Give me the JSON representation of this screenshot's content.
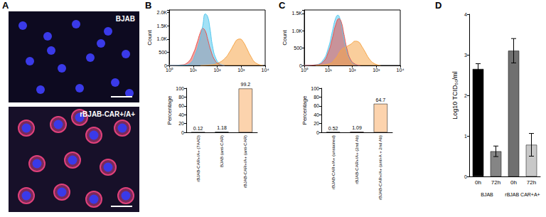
{
  "figure": {
    "panels": [
      {
        "label": "A",
        "images": [
          {
            "label": "BJAB"
          },
          {
            "label": "rBJAB-CAR+/A+"
          }
        ]
      },
      {
        "label": "B"
      },
      {
        "label": "C"
      },
      {
        "label": "D"
      }
    ]
  },
  "chart_data": [
    {
      "type": "area",
      "log": "x",
      "xlim": [
        1,
        10000
      ],
      "xticks": [
        {
          "value": 1,
          "label": "10⁰"
        },
        {
          "value": 10,
          "label": "10¹"
        },
        {
          "value": 100,
          "label": "10²"
        },
        {
          "value": 1000,
          "label": "10³"
        },
        {
          "value": 10000,
          "label": "10⁴"
        }
      ],
      "ylim": [
        0,
        2100
      ],
      "yticks": [
        0,
        500,
        {
          "value": 1000,
          "label": "1.0K"
        },
        {
          "value": 1500,
          "label": "1.5K"
        },
        {
          "value": 2000,
          "label": "2.0K"
        }
      ],
      "ylabel": "Count",
      "series": [
        {
          "color": "#e8534f",
          "x": [
            1,
            3,
            6,
            10,
            15,
            20,
            25,
            32,
            40,
            55,
            80,
            120,
            200
          ],
          "values": [
            0,
            20,
            120,
            450,
            900,
            1250,
            1400,
            1300,
            1000,
            550,
            200,
            50,
            0
          ]
        },
        {
          "color": "#56c8ee",
          "x": [
            1,
            4,
            8,
            12,
            18,
            25,
            32,
            40,
            50,
            65,
            90,
            130,
            200
          ],
          "values": [
            0,
            10,
            100,
            400,
            900,
            1500,
            1950,
            1850,
            1400,
            700,
            250,
            60,
            0
          ]
        },
        {
          "color": "#f5a64a",
          "x": [
            20,
            50,
            100,
            200,
            350,
            500,
            700,
            900,
            1200,
            1700,
            2500,
            4000,
            8000
          ],
          "values": [
            0,
            20,
            80,
            250,
            550,
            800,
            980,
            1000,
            900,
            650,
            350,
            100,
            0
          ]
        }
      ]
    },
    {
      "type": "bar",
      "categories": [
        "rBJAB-CAR+/A+ (7AAD)",
        "BJAB (anti-CAR)",
        "rBJAB-CAR+/A+ (anti-CAR)"
      ],
      "values": [
        0.12,
        1.18,
        99.2
      ],
      "colors": [
        "#e8534f",
        "#8fe3f2",
        "#fcd3ad"
      ],
      "ylabel": "Percentage",
      "ylim": [
        0,
        100
      ],
      "yticks": [
        0,
        20,
        40,
        60,
        80,
        100
      ],
      "data_labels": true
    },
    {
      "type": "area",
      "log": "x",
      "xlim": [
        1,
        10000
      ],
      "xticks": [
        {
          "value": 1,
          "label": "10⁰"
        },
        {
          "value": 10,
          "label": "10¹"
        },
        {
          "value": 100,
          "label": "10²"
        },
        {
          "value": 1000,
          "label": "10³"
        },
        {
          "value": 10000,
          "label": "10⁴"
        }
      ],
      "ylim": [
        0,
        1600
      ],
      "yticks": [
        0,
        500,
        {
          "value": 1000,
          "label": "1.0K"
        },
        {
          "value": 1500,
          "label": "1.5K"
        }
      ],
      "ylabel": "Count",
      "series": [
        {
          "color": "#56c8ee",
          "x": [
            1,
            3,
            6,
            10,
            15,
            20,
            25,
            32,
            40,
            55,
            80,
            120,
            200
          ],
          "values": [
            0,
            20,
            150,
            500,
            1000,
            1350,
            1450,
            1300,
            950,
            500,
            180,
            40,
            0
          ]
        },
        {
          "color": "#e8534f",
          "x": [
            1,
            3,
            6,
            10,
            15,
            20,
            28,
            35,
            45,
            60,
            85,
            130,
            220
          ],
          "values": [
            0,
            15,
            100,
            380,
            800,
            1150,
            1350,
            1250,
            900,
            480,
            170,
            40,
            0
          ]
        },
        {
          "color": "#f5a64a",
          "x": [
            3,
            10,
            20,
            35,
            60,
            90,
            130,
            180,
            250,
            350,
            500,
            800,
            1500
          ],
          "values": [
            0,
            40,
            200,
            450,
            550,
            620,
            700,
            680,
            550,
            380,
            200,
            60,
            0
          ]
        }
      ]
    },
    {
      "type": "bar",
      "categories": [
        "rBJAB-CAR+/A+ (unstained)",
        "rBJAB-CAR+/A+ (2nd Ab)",
        "rBJAB-CAR+/A+ (anti-A + 2nd Ab)"
      ],
      "values": [
        0.52,
        1.09,
        64.7
      ],
      "colors": [
        "#8fe3f2",
        "#e8534f",
        "#fcd3ad"
      ],
      "ylabel": "Percentage",
      "ylim": [
        0,
        100
      ],
      "yticks": [
        0,
        20,
        40,
        60,
        80,
        100
      ],
      "data_labels": true
    },
    {
      "type": "bar",
      "categories": [
        "0h",
        "72h",
        "0h",
        "72h"
      ],
      "groups": [
        "BJAB",
        "rBJAB CAR+A+"
      ],
      "values": [
        2.65,
        0.62,
        3.1,
        0.78
      ],
      "errors": [
        0.13,
        0.13,
        0.3,
        0.28
      ],
      "colors": [
        "#000000",
        "#858585",
        "#707070",
        "#c8c8c8"
      ],
      "ylabel": "Log10 TCID₅₀/ml",
      "ylim": [
        0,
        4
      ],
      "yticks": [
        0,
        1,
        2,
        3,
        4
      ]
    }
  ]
}
